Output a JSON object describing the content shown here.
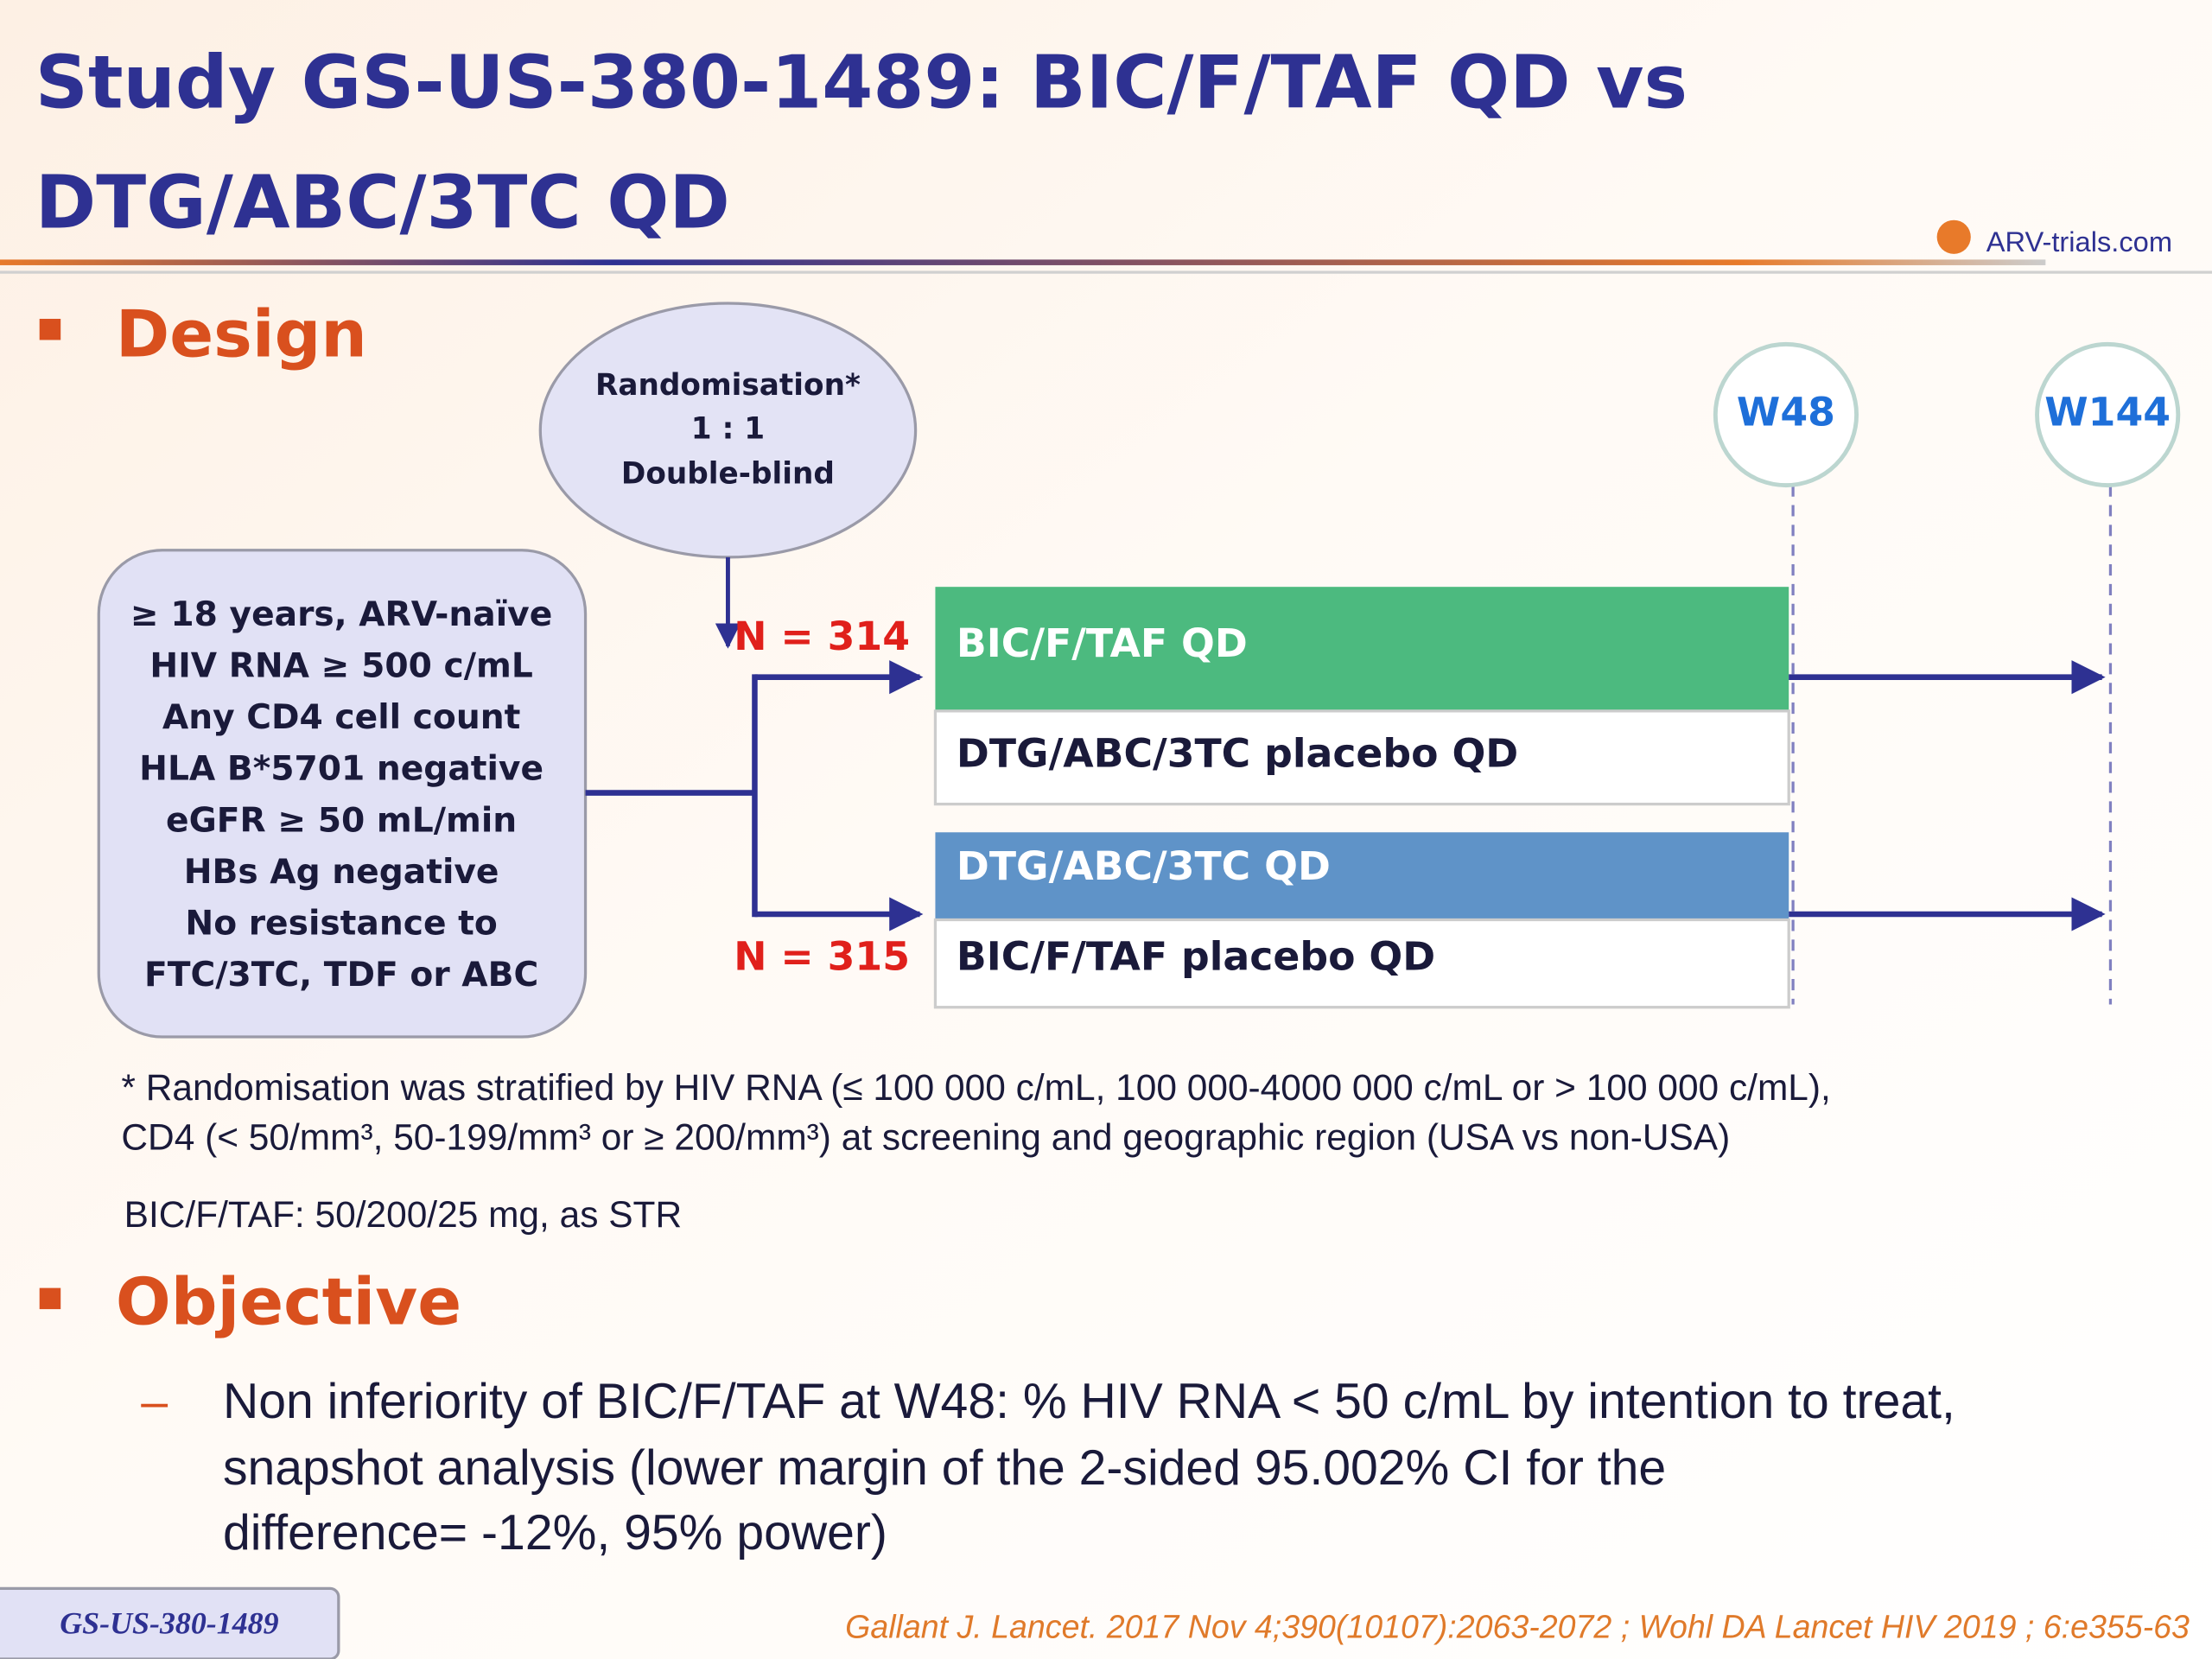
{
  "header": {
    "title_line1": "Study GS-US-380-1489: BIC/F/TAF QD vs",
    "title_line2": "DTG/ABC/3TC QD",
    "logo": "ARV-trials.com"
  },
  "design": {
    "heading": "Design",
    "randomisation": [
      "Randomisation*",
      "1 : 1",
      "Double-blind"
    ],
    "criteria": [
      "≥ 18 years, ARV-naïve",
      "HIV RNA ≥ 500 c/mL",
      "Any CD4 cell count",
      "HLA B*5701 negative",
      "eGFR ≥ 50 mL/min",
      "HBs Ag negative",
      "No resistance to",
      "FTC/3TC, TDF or ABC"
    ],
    "timepoints": [
      "W48",
      "W144"
    ],
    "arms": [
      {
        "n": "N = 314",
        "treatment": "BIC/F/TAF QD",
        "placebo": "DTG/ABC/3TC placebo QD"
      },
      {
        "n": "N = 315",
        "treatment": "DTG/ABC/3TC QD",
        "placebo": "BIC/F/TAF placebo QD"
      }
    ],
    "footnote": [
      "* Randomisation was stratified by HIV RNA (≤ 100 000 c/mL, 100 000-4000 000 c/mL or > 100 000 c/mL),",
      "CD4 (< 50/mm³, 50-199/mm³ or ≥ 200/mm³) at screening and geographic region (USA vs non-USA)"
    ],
    "dosage": "BIC/F/TAF: 50/200/25 mg, as STR"
  },
  "objective": {
    "heading": "Objective",
    "bullet": "–",
    "lines": [
      "Non inferiority of BIC/F/TAF at W48: % HIV RNA < 50 c/mL by intention to treat,",
      "snapshot analysis (lower margin of the 2-sided 95.002% CI for the",
      "difference= -12%, 95% power)"
    ]
  },
  "footer": {
    "study": "GS-US-380-1489",
    "reference": "Gallant J. Lancet. 2017 Nov 4;390(10107):2063-2072 ; Wohl DA Lancet HIV 2019 ; 6:e355-63"
  }
}
